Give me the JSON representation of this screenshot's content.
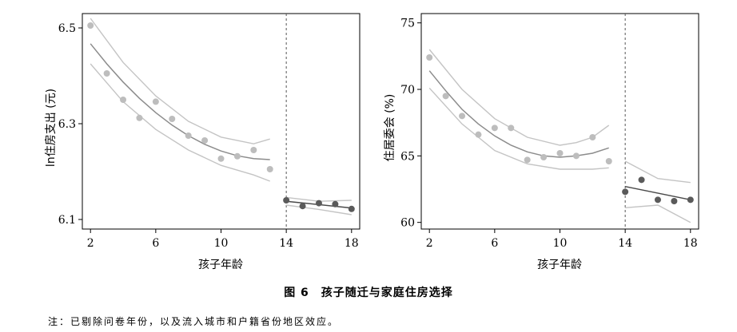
{
  "figure": {
    "caption": "图 6　孩子随迁与家庭住房选择",
    "note": "注：已剔除问卷年份，以及流入城市和户籍省份地区效应。"
  },
  "colors": {
    "pre_points": "#bdbdbd",
    "post_points": "#5a5a5a",
    "fit_line_pre": "#8c8c8c",
    "fit_line_post": "#4a4a4a",
    "ci_band": "#c4c4c4",
    "axis": "#000000",
    "cutoff_line": "#555555"
  },
  "chart_data": [
    {
      "type": "scatter",
      "title": "",
      "xlabel": "孩子年龄",
      "ylabel": "ln住房支出 (元)",
      "xlim": [
        1.5,
        18.5
      ],
      "ylim": [
        6.08,
        6.53
      ],
      "xticks": [
        2,
        6,
        10,
        14,
        18
      ],
      "yticks": [
        6.1,
        6.3,
        6.5
      ],
      "ytick_labels": [
        "6.1",
        "6.3",
        "6.5"
      ],
      "grid": false,
      "cutoff": 14,
      "series": [
        {
          "x": [
            2,
            3,
            4,
            5,
            6,
            7,
            8,
            9,
            10,
            11,
            12,
            13
          ],
          "y": [
            6.505,
            6.405,
            6.35,
            6.312,
            6.346,
            6.31,
            6.275,
            6.265,
            6.227,
            6.232,
            6.245,
            6.205
          ]
        },
        {
          "x": [
            14,
            15,
            16,
            17,
            18
          ],
          "y": [
            6.14,
            6.128,
            6.134,
            6.132,
            6.122
          ]
        }
      ],
      "fit_pre": {
        "x": [
          2,
          3,
          4,
          5,
          6,
          7,
          8,
          9,
          10,
          11,
          12,
          13
        ],
        "y": [
          6.467,
          6.425,
          6.387,
          6.353,
          6.323,
          6.297,
          6.275,
          6.257,
          6.243,
          6.233,
          6.227,
          6.225
        ]
      },
      "ci_upper_pre": {
        "x": [
          2,
          4,
          6,
          8,
          10,
          12,
          13
        ],
        "y": [
          6.52,
          6.428,
          6.358,
          6.305,
          6.272,
          6.258,
          6.268
        ]
      },
      "ci_lower_pre": {
        "x": [
          2,
          4,
          6,
          8,
          10,
          12,
          13
        ],
        "y": [
          6.425,
          6.346,
          6.288,
          6.245,
          6.213,
          6.193,
          6.18
        ]
      },
      "fit_post": {
        "x": [
          14,
          18
        ],
        "y": [
          6.138,
          6.124
        ]
      },
      "ci_upper_post": {
        "x": [
          14,
          16,
          18
        ],
        "y": [
          6.146,
          6.138,
          6.14
        ]
      },
      "ci_lower_post": {
        "x": [
          14,
          16,
          18
        ],
        "y": [
          6.13,
          6.121,
          6.11
        ]
      }
    },
    {
      "type": "scatter",
      "title": "",
      "xlabel": "孩子年龄",
      "ylabel": "住居委会 (%)",
      "xlim": [
        1.5,
        18.5
      ],
      "ylim": [
        59.5,
        75.7
      ],
      "xticks": [
        2,
        6,
        10,
        14,
        18
      ],
      "yticks": [
        60,
        65,
        70,
        75
      ],
      "ytick_labels": [
        "60",
        "65",
        "70",
        "75"
      ],
      "grid": false,
      "cutoff": 14,
      "series": [
        {
          "x": [
            2,
            3,
            4,
            5,
            6,
            7,
            8,
            9,
            10,
            11,
            12,
            13
          ],
          "y": [
            72.4,
            69.5,
            68.0,
            66.6,
            67.1,
            67.1,
            64.7,
            64.9,
            65.2,
            65.0,
            66.4,
            64.6
          ]
        },
        {
          "x": [
            14,
            15,
            16,
            17,
            18
          ],
          "y": [
            62.3,
            63.2,
            61.7,
            61.6,
            61.7
          ]
        }
      ],
      "fit_pre": {
        "x": [
          2,
          3,
          4,
          5,
          6,
          7,
          8,
          9,
          10,
          11,
          12,
          13
        ],
        "y": [
          71.4,
          69.9,
          68.5,
          67.4,
          66.5,
          65.8,
          65.3,
          65.0,
          64.9,
          65.0,
          65.2,
          65.6
        ]
      },
      "ci_upper_pre": {
        "x": [
          2,
          4,
          6,
          8,
          10,
          11,
          12,
          13
        ],
        "y": [
          73.0,
          70.0,
          67.8,
          66.4,
          65.8,
          66.0,
          66.4,
          67.3
        ]
      },
      "ci_lower_pre": {
        "x": [
          2,
          4,
          6,
          8,
          10,
          11,
          12,
          13
        ],
        "y": [
          70.1,
          67.4,
          65.4,
          64.4,
          64.0,
          64.0,
          64.0,
          64.1
        ]
      },
      "fit_post": {
        "x": [
          14,
          18
        ],
        "y": [
          62.7,
          61.7
        ]
      },
      "ci_upper_post": {
        "x": [
          14,
          16,
          18
        ],
        "y": [
          64.6,
          63.3,
          63.0
        ]
      },
      "ci_lower_post": {
        "x": [
          14,
          16,
          18
        ],
        "y": [
          61.1,
          61.3,
          60.0
        ]
      }
    }
  ]
}
